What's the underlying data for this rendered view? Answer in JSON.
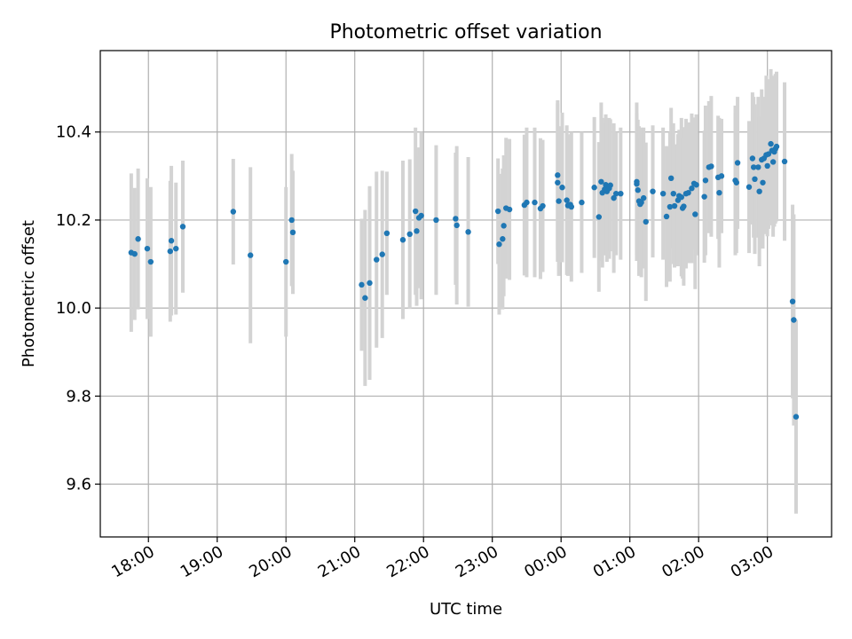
{
  "chart_data": {
    "type": "scatter",
    "title": "Photometric offset variation",
    "xlabel": "UTC time",
    "ylabel": "Photometric offset",
    "grid": true,
    "legend": "none",
    "x_ticks": [
      "18:00",
      "19:00",
      "20:00",
      "21:00",
      "22:00",
      "23:00",
      "00:00",
      "01:00",
      "02:00",
      "03:00"
    ],
    "y_ticks": [
      "9.6",
      "9.8",
      "10.0",
      "10.2",
      "10.4"
    ],
    "x_range": [
      "17:18",
      "03:56"
    ],
    "ylim": [
      9.48,
      10.585
    ],
    "colors": {
      "point": "#1f77b4",
      "errorbar": "#d3d3d3",
      "grid": "#b0b0b0"
    },
    "series": [
      {
        "error_bar": true,
        "points": [
          {
            "x": "17:45",
            "y": 10.126,
            "err": 0.18
          },
          {
            "x": "17:48",
            "y": 10.123,
            "err": 0.15
          },
          {
            "x": "17:51",
            "y": 10.157,
            "err": 0.16
          },
          {
            "x": "17:59",
            "y": 10.135,
            "err": 0.16
          },
          {
            "x": "18:02",
            "y": 10.105,
            "err": 0.17
          },
          {
            "x": "18:19",
            "y": 10.129,
            "err": 0.16
          },
          {
            "x": "18:20",
            "y": 10.153,
            "err": 0.17
          },
          {
            "x": "18:24",
            "y": 10.135,
            "err": 0.15
          },
          {
            "x": "18:30",
            "y": 10.185,
            "err": 0.15
          },
          {
            "x": "19:14",
            "y": 10.219,
            "err": 0.12
          },
          {
            "x": "19:29",
            "y": 10.12,
            "err": 0.2
          },
          {
            "x": "20:00",
            "y": 10.105,
            "err": 0.17
          },
          {
            "x": "20:05",
            "y": 10.2,
            "err": 0.15
          },
          {
            "x": "20:06",
            "y": 10.172,
            "err": 0.14
          },
          {
            "x": "21:06",
            "y": 10.053,
            "err": 0.15
          },
          {
            "x": "21:09",
            "y": 10.023,
            "err": 0.2
          },
          {
            "x": "21:13",
            "y": 10.057,
            "err": 0.22
          },
          {
            "x": "21:19",
            "y": 10.11,
            "err": 0.2
          },
          {
            "x": "21:24",
            "y": 10.122,
            "err": 0.19
          },
          {
            "x": "21:28",
            "y": 10.17,
            "err": 0.14
          },
          {
            "x": "21:42",
            "y": 10.155,
            "err": 0.18
          },
          {
            "x": "21:48",
            "y": 10.168,
            "err": 0.17
          },
          {
            "x": "21:53",
            "y": 10.22,
            "err": 0.19
          },
          {
            "x": "21:54",
            "y": 10.175,
            "err": 0.17
          },
          {
            "x": "21:56",
            "y": 10.205,
            "err": 0.16
          },
          {
            "x": "21:58",
            "y": 10.21,
            "err": 0.19
          },
          {
            "x": "22:11",
            "y": 10.2,
            "err": 0.17
          },
          {
            "x": "22:28",
            "y": 10.203,
            "err": 0.15
          },
          {
            "x": "22:29",
            "y": 10.188,
            "err": 0.18
          },
          {
            "x": "22:39",
            "y": 10.173,
            "err": 0.17
          },
          {
            "x": "23:05",
            "y": 10.22,
            "err": 0.12
          },
          {
            "x": "23:06",
            "y": 10.145,
            "err": 0.16
          },
          {
            "x": "23:09",
            "y": 10.157,
            "err": 0.16
          },
          {
            "x": "23:10",
            "y": 10.187,
            "err": 0.16
          },
          {
            "x": "23:12",
            "y": 10.227,
            "err": 0.16
          },
          {
            "x": "23:15",
            "y": 10.224,
            "err": 0.16
          },
          {
            "x": "23:28",
            "y": 10.234,
            "err": 0.16
          },
          {
            "x": "23:30",
            "y": 10.24,
            "err": 0.17
          },
          {
            "x": "23:37",
            "y": 10.24,
            "err": 0.17
          },
          {
            "x": "23:42",
            "y": 10.226,
            "err": 0.16
          },
          {
            "x": "23:44",
            "y": 10.232,
            "err": 0.15
          },
          {
            "x": "23:57",
            "y": 10.302,
            "err": 0.17
          },
          {
            "x": "23:57",
            "y": 10.285,
            "err": 0.18
          },
          {
            "x": "23:58",
            "y": 10.243,
            "err": 0.17
          },
          {
            "x": "00:01",
            "y": 10.274,
            "err": 0.17
          },
          {
            "x": "00:05",
            "y": 10.245,
            "err": 0.17
          },
          {
            "x": "00:06",
            "y": 10.233,
            "err": 0.16
          },
          {
            "x": "00:08",
            "y": 10.235,
            "err": 0.16
          },
          {
            "x": "00:09",
            "y": 10.23,
            "err": 0.17
          },
          {
            "x": "00:18",
            "y": 10.24,
            "err": 0.16
          },
          {
            "x": "00:29",
            "y": 10.274,
            "err": 0.16
          },
          {
            "x": "00:33",
            "y": 10.207,
            "err": 0.17
          },
          {
            "x": "00:35",
            "y": 10.287,
            "err": 0.18
          },
          {
            "x": "00:36",
            "y": 10.262,
            "err": 0.17
          },
          {
            "x": "00:38",
            "y": 10.27,
            "err": 0.15
          },
          {
            "x": "00:39",
            "y": 10.28,
            "err": 0.16
          },
          {
            "x": "00:40",
            "y": 10.265,
            "err": 0.16
          },
          {
            "x": "00:42",
            "y": 10.272,
            "err": 0.16
          },
          {
            "x": "00:43",
            "y": 10.279,
            "err": 0.15
          },
          {
            "x": "00:46",
            "y": 10.25,
            "err": 0.17
          },
          {
            "x": "00:48",
            "y": 10.26,
            "err": 0.14
          },
          {
            "x": "00:52",
            "y": 10.26,
            "err": 0.15
          },
          {
            "x": "01:06",
            "y": 10.287,
            "err": 0.18
          },
          {
            "x": "01:06",
            "y": 10.282,
            "err": 0.16
          },
          {
            "x": "01:07",
            "y": 10.268,
            "err": 0.16
          },
          {
            "x": "01:08",
            "y": 10.243,
            "err": 0.17
          },
          {
            "x": "01:09",
            "y": 10.236,
            "err": 0.15
          },
          {
            "x": "01:10",
            "y": 10.24,
            "err": 0.17
          },
          {
            "x": "01:12",
            "y": 10.25,
            "err": 0.16
          },
          {
            "x": "01:14",
            "y": 10.196,
            "err": 0.18
          },
          {
            "x": "01:20",
            "y": 10.265,
            "err": 0.15
          },
          {
            "x": "01:29",
            "y": 10.26,
            "err": 0.15
          },
          {
            "x": "01:32",
            "y": 10.208,
            "err": 0.16
          },
          {
            "x": "01:35",
            "y": 10.23,
            "err": 0.17
          },
          {
            "x": "01:36",
            "y": 10.295,
            "err": 0.16
          },
          {
            "x": "01:38",
            "y": 10.26,
            "err": 0.16
          },
          {
            "x": "01:39",
            "y": 10.232,
            "err": 0.14
          },
          {
            "x": "01:42",
            "y": 10.245,
            "err": 0.15
          },
          {
            "x": "01:43",
            "y": 10.255,
            "err": 0.15
          },
          {
            "x": "01:45",
            "y": 10.252,
            "err": 0.18
          },
          {
            "x": "01:46",
            "y": 10.227,
            "err": 0.16
          },
          {
            "x": "01:47",
            "y": 10.231,
            "err": 0.18
          },
          {
            "x": "01:49",
            "y": 10.26,
            "err": 0.17
          },
          {
            "x": "01:51",
            "y": 10.262,
            "err": 0.16
          },
          {
            "x": "01:54",
            "y": 10.272,
            "err": 0.17
          },
          {
            "x": "01:56",
            "y": 10.283,
            "err": 0.15
          },
          {
            "x": "01:57",
            "y": 10.213,
            "err": 0.17
          },
          {
            "x": "01:58",
            "y": 10.28,
            "err": 0.16
          },
          {
            "x": "02:05",
            "y": 10.253,
            "err": 0.15
          },
          {
            "x": "02:06",
            "y": 10.29,
            "err": 0.17
          },
          {
            "x": "02:09",
            "y": 10.32,
            "err": 0.15
          },
          {
            "x": "02:11",
            "y": 10.322,
            "err": 0.16
          },
          {
            "x": "02:17",
            "y": 10.297,
            "err": 0.14
          },
          {
            "x": "02:18",
            "y": 10.262,
            "err": 0.17
          },
          {
            "x": "02:20",
            "y": 10.3,
            "err": 0.13
          },
          {
            "x": "02:32",
            "y": 10.29,
            "err": 0.17
          },
          {
            "x": "02:33",
            "y": 10.285,
            "err": 0.16
          },
          {
            "x": "02:34",
            "y": 10.33,
            "err": 0.15
          },
          {
            "x": "02:44",
            "y": 10.275,
            "err": 0.15
          },
          {
            "x": "02:47",
            "y": 10.34,
            "err": 0.15
          },
          {
            "x": "02:48",
            "y": 10.32,
            "err": 0.16
          },
          {
            "x": "02:49",
            "y": 10.293,
            "err": 0.17
          },
          {
            "x": "02:52",
            "y": 10.32,
            "err": 0.16
          },
          {
            "x": "02:53",
            "y": 10.265,
            "err": 0.17
          },
          {
            "x": "02:55",
            "y": 10.337,
            "err": 0.16
          },
          {
            "x": "02:56",
            "y": 10.285,
            "err": 0.15
          },
          {
            "x": "02:57",
            "y": 10.34,
            "err": 0.14
          },
          {
            "x": "02:59",
            "y": 10.348,
            "err": 0.18
          },
          {
            "x": "03:00",
            "y": 10.323,
            "err": 0.16
          },
          {
            "x": "03:01",
            "y": 10.35,
            "err": 0.17
          },
          {
            "x": "03:03",
            "y": 10.373,
            "err": 0.17
          },
          {
            "x": "03:04",
            "y": 10.358,
            "err": 0.17
          },
          {
            "x": "03:05",
            "y": 10.332,
            "err": 0.17
          },
          {
            "x": "03:06",
            "y": 10.355,
            "err": 0.17
          },
          {
            "x": "03:07",
            "y": 10.362,
            "err": 0.17
          },
          {
            "x": "03:08",
            "y": 10.367,
            "err": 0.17
          },
          {
            "x": "03:15",
            "y": 10.333,
            "err": 0.18
          },
          {
            "x": "03:22",
            "y": 10.015,
            "err": 0.22
          },
          {
            "x": "03:23",
            "y": 9.973,
            "err": 0.24
          },
          {
            "x": "03:25",
            "y": 9.753,
            "err": 0.22
          }
        ]
      }
    ]
  }
}
